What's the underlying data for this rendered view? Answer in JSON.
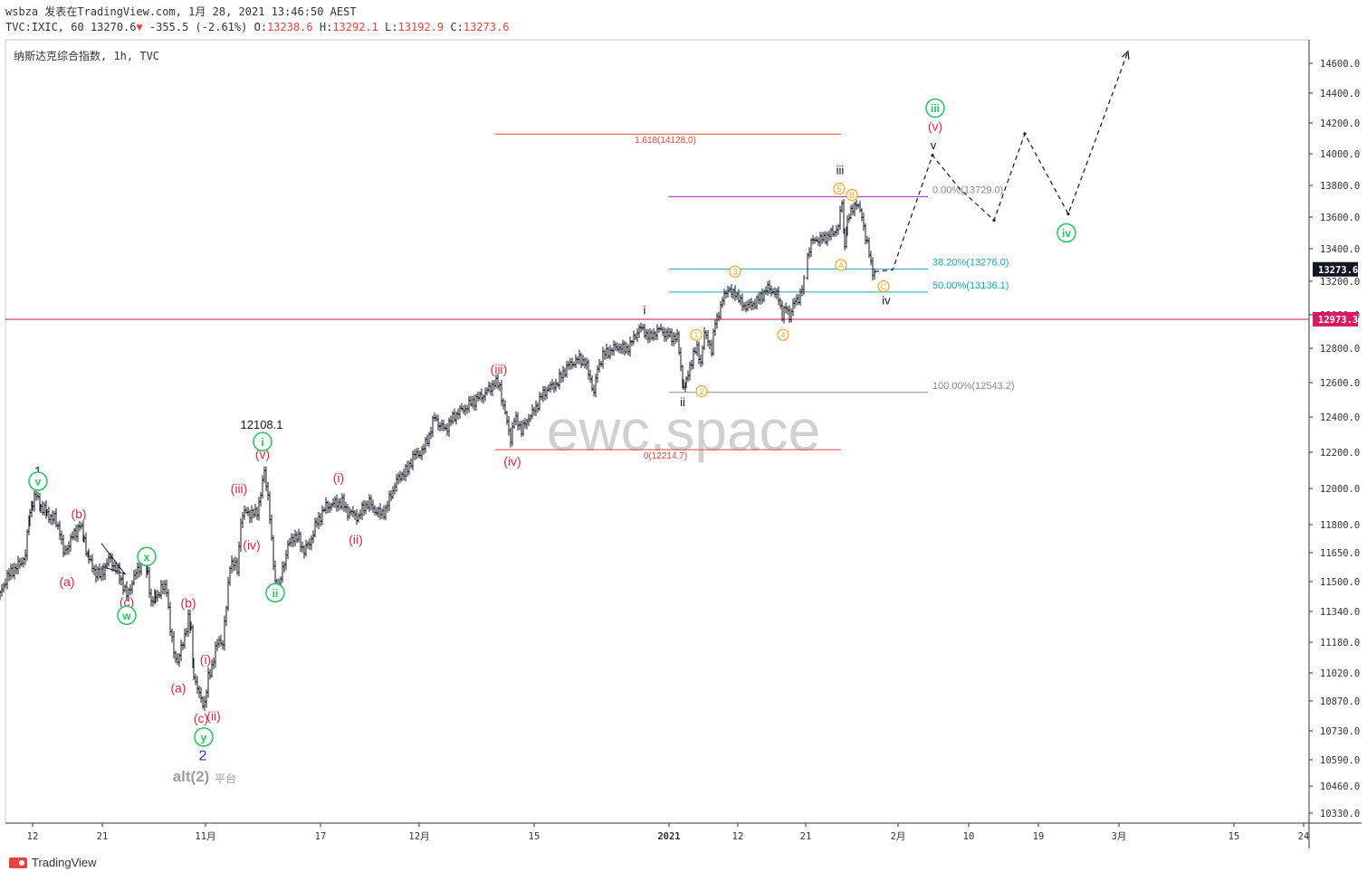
{
  "header": {
    "line1": "wsbza 发表在TradingView.com, 1月 28, 2021 13:46:50 AEST",
    "symbol": "TVC:IXIC, 60",
    "last": "13270.6",
    "change": "-355.5 (-2.61%)",
    "o_label": "O:",
    "o_val": "13238.6",
    "h_label": "H:",
    "h_val": "13292.1",
    "l_label": "L:",
    "l_val": "13192.9",
    "c_label": "C:",
    "c_val": "13273.6"
  },
  "footer": {
    "brand": "TradingView"
  },
  "chart_data": {
    "type": "candlestick",
    "title": "纳斯达克综合指数, 1h, TVC",
    "watermark": "ewc.space",
    "y_axis": {
      "ticks": [
        14600,
        14400,
        14200,
        14000,
        13800,
        13600,
        13400,
        13200,
        13000,
        12800,
        12600,
        12400,
        12200,
        12000,
        11800,
        11650,
        11500,
        11340,
        11180,
        11020,
        10870,
        10730,
        10590,
        10460,
        10330
      ],
      "labels": [
        "14600.0",
        "14400.0",
        "14200.0",
        "14000.0",
        "13800.0",
        "13600.0",
        "13400.0",
        "13200.0",
        "13000.0",
        "12800.0",
        "12600.0",
        "12400.0",
        "12200.0",
        "12000.0",
        "11800.0",
        "11650.0",
        "11500.0",
        "11340.0",
        "11180.0",
        "11020.0",
        "10870.0",
        "10730.0",
        "10590.0",
        "10460.0",
        "10330.0"
      ],
      "current_price": {
        "value": 13273.6,
        "label": "13273.6"
      },
      "level_badge": {
        "value": 12973.3,
        "label": "12973.3"
      }
    },
    "x_axis": {
      "labels": [
        "12",
        "21",
        "11月",
        "17",
        "12月",
        "15",
        "2021",
        "12",
        "21",
        "2月",
        "10",
        "19",
        "3月",
        "15",
        "24"
      ]
    },
    "price_path": [
      [
        0,
        11430
      ],
      [
        6,
        11510
      ],
      [
        14,
        11560
      ],
      [
        22,
        11590
      ],
      [
        28,
        11640
      ],
      [
        33,
        11880
      ],
      [
        36,
        11930
      ],
      [
        40,
        11960
      ],
      [
        45,
        11900
      ],
      [
        52,
        11860
      ],
      [
        60,
        11830
      ],
      [
        66,
        11770
      ],
      [
        70,
        11640
      ],
      [
        76,
        11700
      ],
      [
        82,
        11750
      ],
      [
        88,
        11800
      ],
      [
        93,
        11720
      ],
      [
        98,
        11610
      ],
      [
        104,
        11560
      ],
      [
        110,
        11530
      ],
      [
        116,
        11580
      ],
      [
        122,
        11620
      ],
      [
        128,
        11560
      ],
      [
        134,
        11510
      ],
      [
        140,
        11420
      ],
      [
        146,
        11500
      ],
      [
        152,
        11560
      ],
      [
        158,
        11620
      ],
      [
        163,
        11550
      ],
      [
        167,
        11380
      ],
      [
        172,
        11420
      ],
      [
        178,
        11460
      ],
      [
        184,
        11470
      ],
      [
        188,
        11240
      ],
      [
        192,
        11130
      ],
      [
        196,
        11080
      ],
      [
        200,
        11140
      ],
      [
        204,
        11220
      ],
      [
        208,
        11300
      ],
      [
        211,
        11240
      ],
      [
        214,
        11020
      ],
      [
        218,
        10930
      ],
      [
        222,
        10880
      ],
      [
        226,
        10860
      ],
      [
        230,
        10990
      ],
      [
        234,
        11060
      ],
      [
        238,
        11140
      ],
      [
        242,
        11190
      ],
      [
        246,
        11180
      ],
      [
        250,
        11360
      ],
      [
        254,
        11600
      ],
      [
        258,
        11590
      ],
      [
        262,
        11560
      ],
      [
        266,
        11820
      ],
      [
        272,
        11880
      ],
      [
        278,
        11850
      ],
      [
        284,
        11880
      ],
      [
        288,
        11960
      ],
      [
        292,
        12100
      ],
      [
        296,
        11960
      ],
      [
        300,
        11700
      ],
      [
        304,
        11500
      ],
      [
        308,
        11460
      ],
      [
        312,
        11570
      ],
      [
        318,
        11680
      ],
      [
        324,
        11740
      ],
      [
        330,
        11720
      ],
      [
        336,
        11660
      ],
      [
        342,
        11700
      ],
      [
        348,
        11790
      ],
      [
        354,
        11850
      ],
      [
        360,
        11900
      ],
      [
        366,
        11910
      ],
      [
        372,
        11920
      ],
      [
        378,
        11920
      ],
      [
        384,
        11870
      ],
      [
        390,
        11860
      ],
      [
        396,
        11840
      ],
      [
        402,
        11900
      ],
      [
        408,
        11920
      ],
      [
        414,
        11880
      ],
      [
        420,
        11860
      ],
      [
        426,
        11880
      ],
      [
        432,
        11970
      ],
      [
        438,
        12040
      ],
      [
        444,
        12080
      ],
      [
        450,
        12100
      ],
      [
        456,
        12180
      ],
      [
        462,
        12190
      ],
      [
        468,
        12220
      ],
      [
        474,
        12300
      ],
      [
        480,
        12400
      ],
      [
        486,
        12350
      ],
      [
        492,
        12330
      ],
      [
        498,
        12380
      ],
      [
        504,
        12420
      ],
      [
        510,
        12440
      ],
      [
        516,
        12460
      ],
      [
        522,
        12490
      ],
      [
        528,
        12510
      ],
      [
        534,
        12530
      ],
      [
        540,
        12560
      ],
      [
        546,
        12600
      ],
      [
        552,
        12580
      ],
      [
        556,
        12460
      ],
      [
        560,
        12370
      ],
      [
        564,
        12280
      ],
      [
        568,
        12380
      ],
      [
        572,
        12380
      ],
      [
        576,
        12320
      ],
      [
        580,
        12360
      ],
      [
        584,
        12400
      ],
      [
        588,
        12420
      ],
      [
        592,
        12460
      ],
      [
        598,
        12520
      ],
      [
        604,
        12560
      ],
      [
        610,
        12580
      ],
      [
        616,
        12600
      ],
      [
        622,
        12660
      ],
      [
        628,
        12700
      ],
      [
        634,
        12720
      ],
      [
        640,
        12740
      ],
      [
        646,
        12720
      ],
      [
        652,
        12620
      ],
      [
        656,
        12540
      ],
      [
        660,
        12680
      ],
      [
        666,
        12760
      ],
      [
        672,
        12780
      ],
      [
        678,
        12800
      ],
      [
        684,
        12810
      ],
      [
        690,
        12790
      ],
      [
        696,
        12820
      ],
      [
        700,
        12860
      ],
      [
        706,
        12920
      ],
      [
        712,
        12900
      ],
      [
        718,
        12860
      ],
      [
        724,
        12900
      ],
      [
        730,
        12910
      ],
      [
        736,
        12880
      ],
      [
        742,
        12870
      ],
      [
        748,
        12860
      ],
      [
        752,
        12700
      ],
      [
        755,
        12560
      ],
      [
        758,
        12600
      ],
      [
        762,
        12700
      ],
      [
        766,
        12760
      ],
      [
        770,
        12800
      ],
      [
        774,
        12720
      ],
      [
        778,
        12880
      ],
      [
        782,
        12860
      ],
      [
        786,
        12780
      ],
      [
        790,
        12960
      ],
      [
        796,
        13040
      ],
      [
        800,
        13120
      ],
      [
        804,
        13160
      ],
      [
        808,
        13120
      ],
      [
        812,
        13140
      ],
      [
        818,
        13070
      ],
      [
        824,
        13050
      ],
      [
        830,
        13060
      ],
      [
        836,
        13080
      ],
      [
        842,
        13120
      ],
      [
        848,
        13160
      ],
      [
        854,
        13140
      ],
      [
        860,
        13100
      ],
      [
        864,
        13000
      ],
      [
        868,
        13040
      ],
      [
        872,
        12990
      ],
      [
        876,
        13060
      ],
      [
        882,
        13100
      ],
      [
        888,
        13190
      ],
      [
        892,
        13360
      ],
      [
        896,
        13440
      ],
      [
        902,
        13460
      ],
      [
        908,
        13460
      ],
      [
        914,
        13480
      ],
      [
        920,
        13500
      ],
      [
        926,
        13540
      ],
      [
        930,
        13700
      ],
      [
        933,
        13420
      ],
      [
        936,
        13560
      ],
      [
        940,
        13640
      ],
      [
        944,
        13680
      ],
      [
        948,
        13660
      ],
      [
        952,
        13620
      ],
      [
        956,
        13460
      ],
      [
        960,
        13380
      ],
      [
        964,
        13260
      ],
      [
        967,
        13220
      ]
    ],
    "projection": [
      [
        966,
        13260
      ],
      [
        986,
        13270
      ],
      [
        1030,
        13990
      ],
      [
        1060,
        13780
      ],
      [
        1098,
        13580
      ],
      [
        1132,
        14130
      ],
      [
        1180,
        13620
      ],
      [
        1246,
        14680
      ]
    ],
    "fib_upper": [
      {
        "level": 14128,
        "label": "1.618(14128.0)"
      },
      {
        "level": 12214.7,
        "label": "0(12214.7)"
      }
    ],
    "fib_lower": [
      {
        "level": 13729,
        "label": "0.00%(13729.0)"
      },
      {
        "level": 13276,
        "label": "38.20%(13276.0)"
      },
      {
        "level": 13136.1,
        "label": "50.00%(13136.1)"
      },
      {
        "level": 12543.2,
        "label": "100.00%(12543.2)"
      }
    ],
    "annotations": [
      {
        "text": "1",
        "kind": "blue",
        "x": 42,
        "p": 12090
      },
      {
        "text": "v",
        "kind": "gcirc",
        "x": 42,
        "p": 12040
      },
      {
        "text": "(b)",
        "kind": "red",
        "x": 87,
        "p": 11860
      },
      {
        "text": "(a)",
        "kind": "red",
        "x": 74,
        "p": 11500
      },
      {
        "text": "x",
        "kind": "gcirc",
        "x": 162,
        "p": 11630
      },
      {
        "text": "(c)",
        "kind": "red",
        "x": 140,
        "p": 11390
      },
      {
        "text": "w",
        "kind": "gcirc",
        "x": 140,
        "p": 11320
      },
      {
        "text": "(b)",
        "kind": "red",
        "x": 208,
        "p": 11385
      },
      {
        "text": "(i)",
        "kind": "red",
        "x": 227,
        "p": 11090
      },
      {
        "text": "(a)",
        "kind": "red",
        "x": 197,
        "p": 10940
      },
      {
        "text": "(c)",
        "kind": "red",
        "x": 222,
        "p": 10790
      },
      {
        "text": "(ii)",
        "kind": "red",
        "x": 236,
        "p": 10800
      },
      {
        "text": "y",
        "kind": "gcirc",
        "x": 225,
        "p": 10700
      },
      {
        "text": "2",
        "kind": "blue",
        "x": 224,
        "p": 10610
      },
      {
        "text": "alt(2)",
        "kind": "grayL",
        "x": 211,
        "p": 10505
      },
      {
        "text": "平台",
        "kind": "grayS",
        "x": 249,
        "p": 10500
      },
      {
        "text": "12108.1",
        "kind": "black",
        "x": 289,
        "p": 12360
      },
      {
        "text": "i",
        "kind": "gcirc",
        "x": 290,
        "p": 12260
      },
      {
        "text": "(v)",
        "kind": "red",
        "x": 290,
        "p": 12190
      },
      {
        "text": "(iii)",
        "kind": "red",
        "x": 264,
        "p": 12000
      },
      {
        "text": "(iv)",
        "kind": "red",
        "x": 278,
        "p": 11690
      },
      {
        "text": "ii",
        "kind": "gcirc",
        "x": 304,
        "p": 11440
      },
      {
        "text": "(i)",
        "kind": "red",
        "x": 374,
        "p": 12060
      },
      {
        "text": "(ii)",
        "kind": "red",
        "x": 393,
        "p": 11720
      },
      {
        "text": "(iii)",
        "kind": "red",
        "x": 551,
        "p": 12680
      },
      {
        "text": "(iv)",
        "kind": "red",
        "x": 566,
        "p": 12150
      },
      {
        "text": "i",
        "kind": "black",
        "x": 712,
        "p": 13030
      },
      {
        "text": "ii",
        "kind": "black",
        "x": 754,
        "p": 12490
      },
      {
        "text": "1",
        "kind": "ocirc",
        "x": 769,
        "p": 12880
      },
      {
        "text": "2",
        "kind": "ocirc",
        "x": 775,
        "p": 12550
      },
      {
        "text": "3",
        "kind": "ocirc",
        "x": 812,
        "p": 13260
      },
      {
        "text": "4",
        "kind": "ocirc",
        "x": 865,
        "p": 12880
      },
      {
        "text": "iii",
        "kind": "black",
        "x": 928,
        "p": 13900
      },
      {
        "text": "5",
        "kind": "ocirc",
        "x": 927,
        "p": 13780
      },
      {
        "text": "B",
        "kind": "ocirc",
        "x": 941,
        "p": 13740
      },
      {
        "text": "A",
        "kind": "ocirc",
        "x": 929,
        "p": 13300
      },
      {
        "text": "C",
        "kind": "ocirc",
        "x": 976,
        "p": 13170
      },
      {
        "text": "iv",
        "kind": "black",
        "x": 979,
        "p": 13090
      },
      {
        "text": "iii",
        "kind": "gcirc",
        "x": 1033,
        "p": 14300
      },
      {
        "text": "(v)",
        "kind": "red",
        "x": 1033,
        "p": 14180
      },
      {
        "text": "v",
        "kind": "black",
        "x": 1031,
        "p": 14060
      },
      {
        "text": "iv",
        "kind": "gcirc",
        "x": 1178,
        "p": 13500
      }
    ]
  }
}
